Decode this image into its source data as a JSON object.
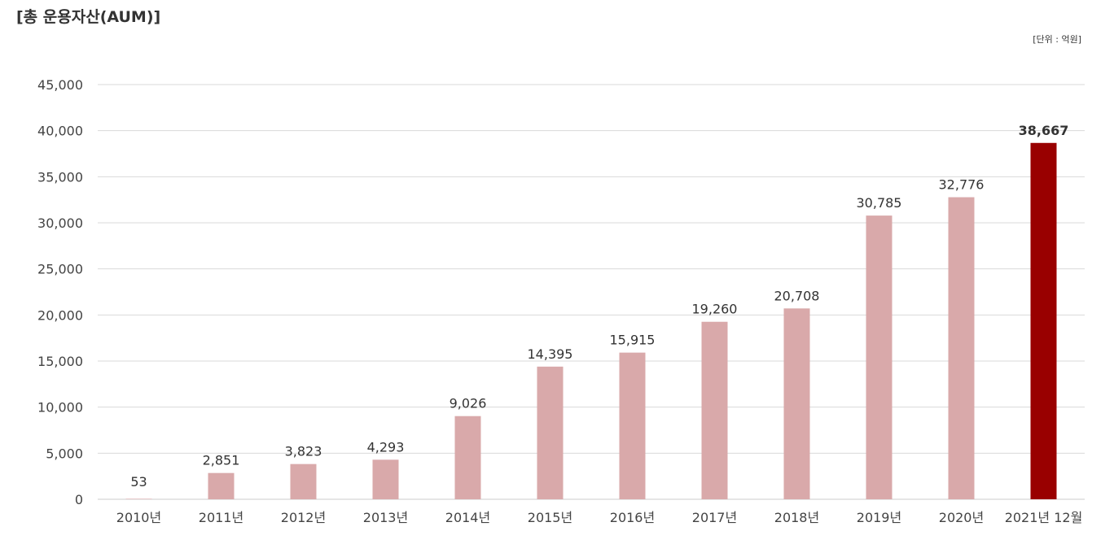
{
  "title": "[총 운용자산(AUM)]",
  "unit": "[단위 : 억원]",
  "colors": {
    "bar": "#d9a9aa",
    "highlight_bar": "#990000",
    "grid": "#d9d9d9",
    "axis": "#cccccc"
  },
  "chart_data": {
    "type": "bar",
    "categories": [
      "2010년",
      "2011년",
      "2012년",
      "2013년",
      "2014년",
      "2015년",
      "2016년",
      "2017년",
      "2018년",
      "2019년",
      "2020년",
      "2021년 12월"
    ],
    "values": [
      53,
      2851,
      3823,
      4293,
      9026,
      14395,
      15915,
      19260,
      20708,
      30785,
      32776,
      38667
    ],
    "value_labels": [
      "53",
      "2,851",
      "3,823",
      "4,293",
      "9,026",
      "14,395",
      "15,915",
      "19,260",
      "20,708",
      "30,785",
      "32,776",
      "38,667"
    ],
    "yticks": [
      0,
      5000,
      10000,
      15000,
      20000,
      25000,
      30000,
      35000,
      40000,
      45000
    ],
    "ytick_labels": [
      "0",
      "5,000",
      "10,000",
      "15,000",
      "20,000",
      "25,000",
      "30,000",
      "35,000",
      "40,000",
      "45,000"
    ],
    "ylim": [
      0,
      45000
    ],
    "highlight_index": 11,
    "grid": true,
    "legend": "none"
  }
}
